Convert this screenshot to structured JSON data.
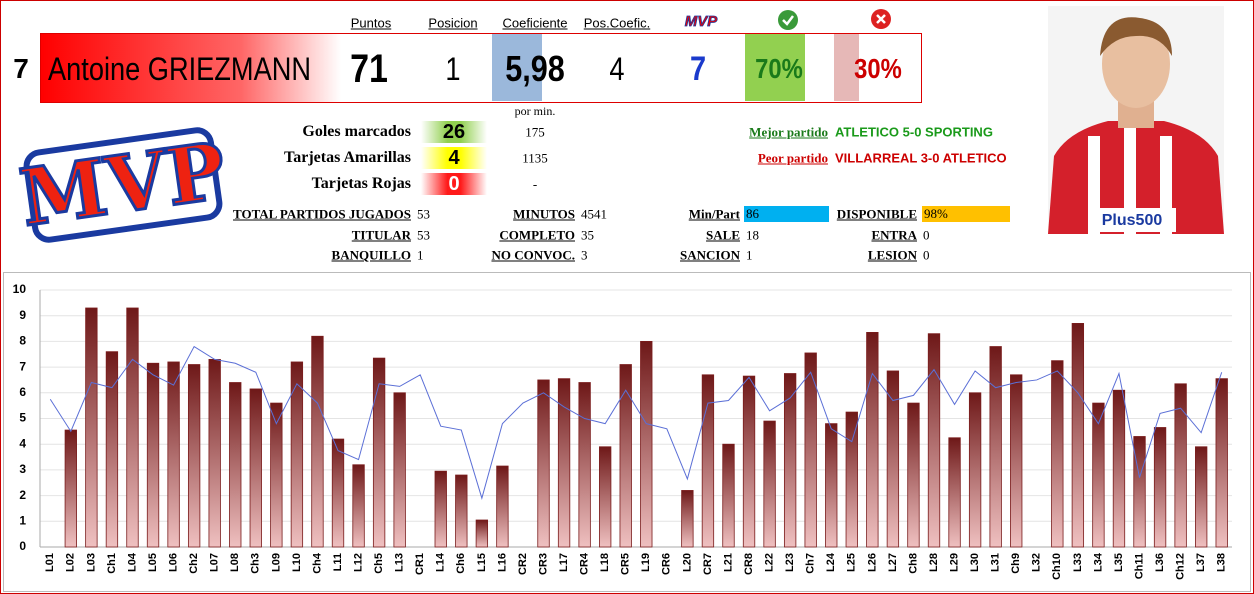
{
  "header": {
    "columns": [
      "Puntos",
      "Posicion",
      "Coeficiente",
      "Pos.Coefic."
    ],
    "number": "7",
    "player": "Antoine GRIEZMANN",
    "values": [
      "71",
      "1",
      "5,98",
      "4",
      "7",
      "70%",
      "30%"
    ]
  },
  "stats": {
    "per_min_label": "por min.",
    "rows": [
      {
        "label": "Goles marcados",
        "value": "26",
        "per_min": "175"
      },
      {
        "label": "Tarjetas Amarillas",
        "value": "4",
        "per_min": "1135"
      },
      {
        "label": "Tarjetas Rojas",
        "value": "0",
        "per_min": "-"
      }
    ],
    "best": {
      "label": "Mejor partido",
      "value": "ATLETICO 5-0 SPORTING"
    },
    "worst": {
      "label": "Peor partido",
      "value": "VILLARREAL 3-0 ATLETICO"
    }
  },
  "summary": {
    "rows": [
      [
        {
          "label": "TOTAL PARTIDOS JUGADOS",
          "value": "53"
        },
        {
          "label": "MINUTOS",
          "value": "4541"
        },
        {
          "label": "Min/Part",
          "value": "86"
        },
        {
          "label": "DISPONIBLE",
          "value": "98%"
        }
      ],
      [
        {
          "label": "TITULAR",
          "value": "53"
        },
        {
          "label": "COMPLETO",
          "value": "35"
        },
        {
          "label": "SALE",
          "value": "18"
        },
        {
          "label": "ENTRA",
          "value": "0"
        }
      ],
      [
        {
          "label": "BANQUILLO",
          "value": "1"
        },
        {
          "label": "NO CONVOC.",
          "value": "3"
        },
        {
          "label": "SANCION",
          "value": "1"
        },
        {
          "label": "LESION",
          "value": "0"
        }
      ]
    ]
  },
  "chart_data": {
    "type": "bar",
    "categories": [
      "L01",
      "L02",
      "L03",
      "Ch1",
      "L04",
      "L05",
      "L06",
      "Ch2",
      "L07",
      "L08",
      "Ch3",
      "L09",
      "L10",
      "Ch4",
      "L11",
      "L12",
      "Ch5",
      "L13",
      "CR1",
      "L14",
      "Ch6",
      "L15",
      "L16",
      "CR2",
      "CR3",
      "L17",
      "CR4",
      "L18",
      "CR5",
      "L19",
      "CR6",
      "L20",
      "CR7",
      "L21",
      "CR8",
      "L22",
      "L23",
      "Ch7",
      "L24",
      "L25",
      "L26",
      "L27",
      "Ch8",
      "L28",
      "L29",
      "L30",
      "L31",
      "Ch9",
      "L32",
      "Ch10",
      "L33",
      "L34",
      "L35",
      "Ch11",
      "L36",
      "Ch12",
      "L37",
      "L38"
    ],
    "series": [
      {
        "type": "bar",
        "color": "#7a1c1c",
        "values": [
          null,
          4.55,
          9.3,
          7.6,
          9.3,
          7.15,
          7.2,
          7.1,
          7.3,
          6.4,
          6.15,
          5.6,
          7.2,
          8.2,
          4.2,
          3.2,
          7.35,
          6.0,
          null,
          2.95,
          2.8,
          1.05,
          3.15,
          null,
          6.5,
          6.55,
          6.4,
          3.9,
          7.1,
          8.0,
          null,
          2.2,
          6.7,
          4.0,
          6.65,
          4.9,
          6.75,
          7.55,
          4.8,
          5.25,
          8.35,
          6.85,
          5.6,
          8.3,
          4.25,
          6.0,
          7.8,
          6.7,
          null,
          7.25,
          8.7,
          5.6,
          6.1,
          4.3,
          4.65,
          6.35,
          3.9,
          6.55
        ]
      },
      {
        "type": "line",
        "color": "#5b6fd6",
        "values": [
          5.75,
          4.5,
          6.4,
          6.2,
          7.3,
          6.7,
          6.3,
          7.8,
          7.3,
          7.15,
          6.8,
          4.8,
          6.35,
          5.6,
          3.75,
          3.4,
          6.35,
          6.25,
          6.7,
          4.7,
          4.55,
          1.9,
          4.8,
          5.6,
          6.0,
          5.45,
          5.0,
          4.8,
          6.1,
          4.8,
          4.6,
          2.65,
          5.6,
          5.7,
          6.6,
          5.3,
          5.8,
          6.8,
          4.6,
          4.1,
          6.75,
          5.7,
          5.9,
          6.9,
          5.55,
          6.85,
          6.2,
          6.4,
          6.5,
          6.85,
          6.0,
          4.8,
          6.75,
          2.7,
          5.2,
          5.4,
          4.45,
          6.8
        ]
      }
    ],
    "ylim": [
      0,
      10
    ],
    "yticks": [
      0,
      1,
      2,
      3,
      4,
      5,
      6,
      7,
      8,
      9,
      10
    ],
    "grid": true
  }
}
